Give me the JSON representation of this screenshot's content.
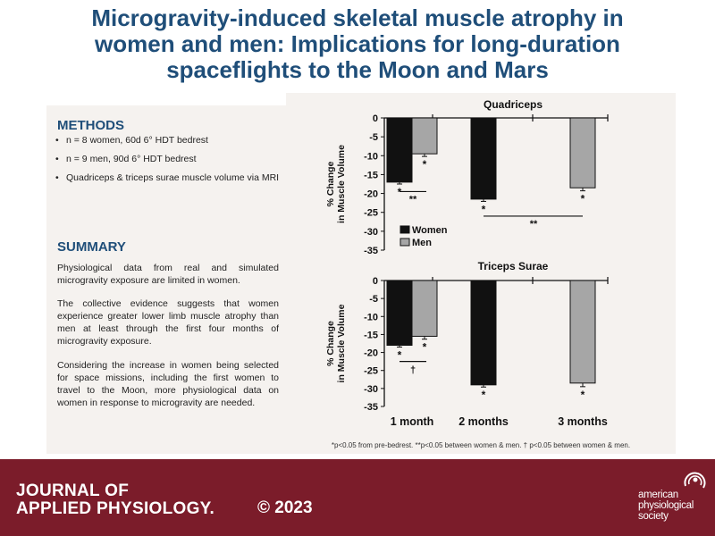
{
  "title": {
    "line1": "Microgravity-induced skeletal muscle atrophy in",
    "line2": "women and men: Implications for long-duration",
    "line3": "spaceflights to the Moon and Mars"
  },
  "methods": {
    "heading": "METHODS",
    "items": [
      "n = 8 women, 60d 6° HDT bedrest",
      "n = 9 men, 90d 6° HDT bedrest",
      "Quadriceps & triceps surae muscle volume via MRI"
    ]
  },
  "summary": {
    "heading": "SUMMARY",
    "paragraphs": [
      "Physiological data from real and simulated microgravity exposure are limited in women.",
      "The collective evidence suggests that women experience greater lower limb muscle atrophy than men at least through the first four months of microgravity exposure.",
      "Considering the increase in women being selected for space missions, including the first women to travel to the Moon, more physiological data on women in response to microgravity are needed."
    ]
  },
  "footnote": "*p<0.05 from pre-bedrest.  **p<0.05 between women & men.  † p<0.05 between women & men.",
  "footer": {
    "journal_line1": "JOURNAL OF",
    "journal_line2": "APPLIED PHYSIOLOGY.",
    "copyright": "© 2023",
    "society_line1": "american",
    "society_line2": "physiological",
    "society_line3": "society"
  },
  "colors": {
    "title": "#1f4e79",
    "footer_bg": "#7b1c2a",
    "panel_bg": "#f5f2ef",
    "women": "#111111",
    "men": "#a6a6a6"
  },
  "chart_data": [
    {
      "type": "bar",
      "title": "Quadriceps",
      "ylabel": "% Change in Muscle Volume",
      "ylim": [
        -35,
        0
      ],
      "yticks": [
        0,
        -5,
        -10,
        -15,
        -20,
        -25,
        -30,
        -35
      ],
      "categories": [
        "1 month",
        "2 months",
        "3 months"
      ],
      "series": [
        {
          "name": "Women",
          "color": "#111111",
          "values": [
            -17,
            -21.5,
            null
          ],
          "errors": [
            0.5,
            0.6,
            null
          ]
        },
        {
          "name": "Men",
          "color": "#a6a6a6",
          "values": [
            -9.5,
            null,
            -18.5
          ],
          "errors": [
            0.7,
            null,
            0.8
          ]
        }
      ],
      "sig_marks": [
        "*",
        "*",
        "*",
        "*"
      ],
      "brackets": [
        {
          "label": "**",
          "between": "1 month: women vs men"
        },
        {
          "label": "**",
          "between": "2 months women vs 3 months men"
        }
      ],
      "legend": "bottom-left"
    },
    {
      "type": "bar",
      "title": "Triceps Surae",
      "ylabel": "% Change in Muscle Volume",
      "ylim": [
        -35,
        0
      ],
      "yticks": [
        0,
        -5,
        -10,
        -15,
        -20,
        -25,
        -30,
        -35
      ],
      "categories": [
        "1 month",
        "2 months",
        "3 months"
      ],
      "series": [
        {
          "name": "Women",
          "color": "#111111",
          "values": [
            -18,
            -29,
            null
          ],
          "errors": [
            0.5,
            0.6,
            null
          ]
        },
        {
          "name": "Men",
          "color": "#a6a6a6",
          "values": [
            -15.5,
            null,
            -28.5
          ],
          "errors": [
            0.8,
            null,
            1.0
          ]
        }
      ],
      "sig_marks": [
        "*",
        "*",
        "*",
        "*"
      ],
      "brackets": [
        {
          "label": "†",
          "between": "1 month: women vs men"
        }
      ]
    }
  ]
}
